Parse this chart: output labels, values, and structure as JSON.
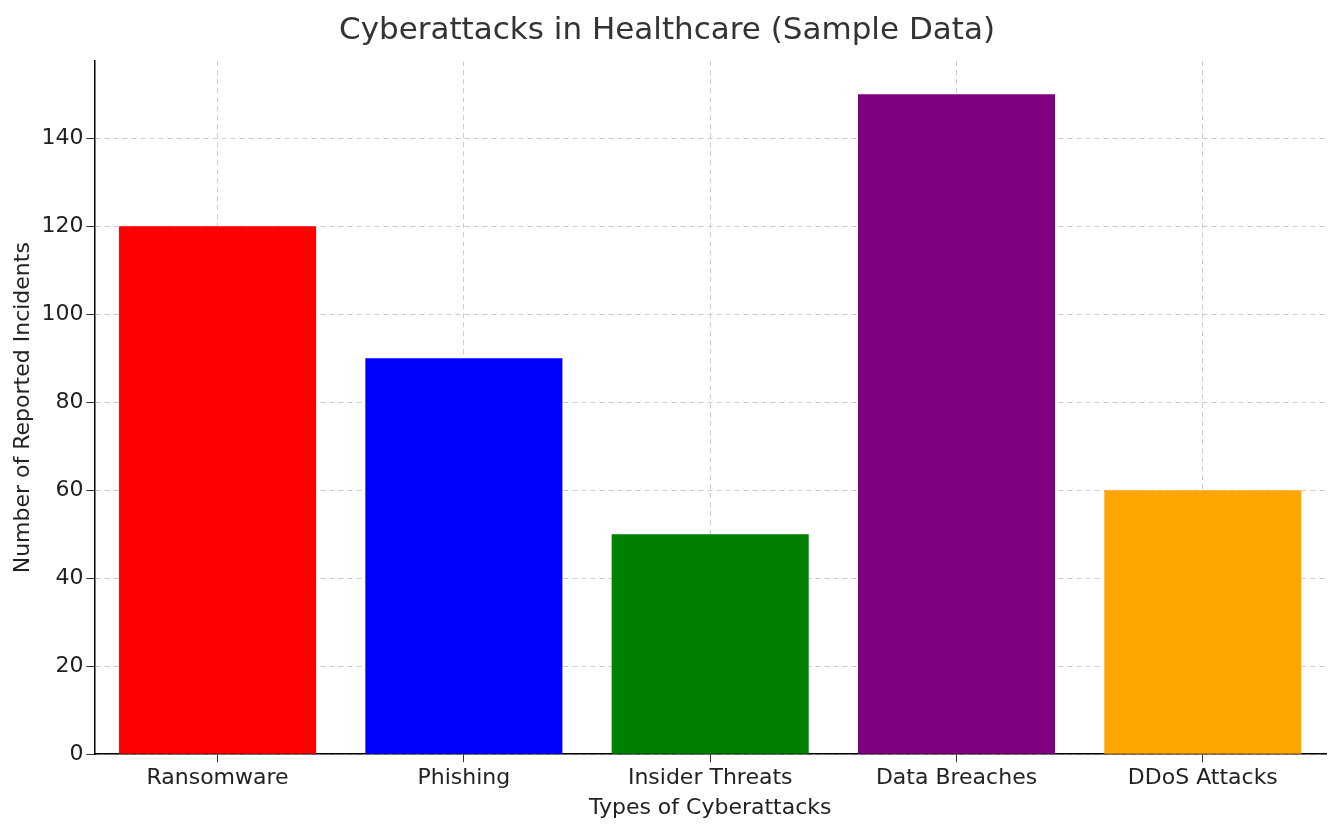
{
  "chart_data": {
    "type": "bar",
    "title": "Cyberattacks in Healthcare (Sample Data)",
    "xlabel": "Types of Cyberattacks",
    "ylabel": "Number of Reported Incidents",
    "categories": [
      "Ransomware",
      "Phishing",
      "Insider Threats",
      "Data Breaches",
      "DDoS Attacks"
    ],
    "values": [
      120,
      90,
      50,
      150,
      60
    ],
    "colors": [
      "#ff0000",
      "#0000ff",
      "#008000",
      "#800080",
      "#ffa500"
    ],
    "ylim": [
      0,
      157.5
    ],
    "yticks": [
      0,
      20,
      40,
      60,
      80,
      100,
      120,
      140
    ],
    "grid": true
  }
}
